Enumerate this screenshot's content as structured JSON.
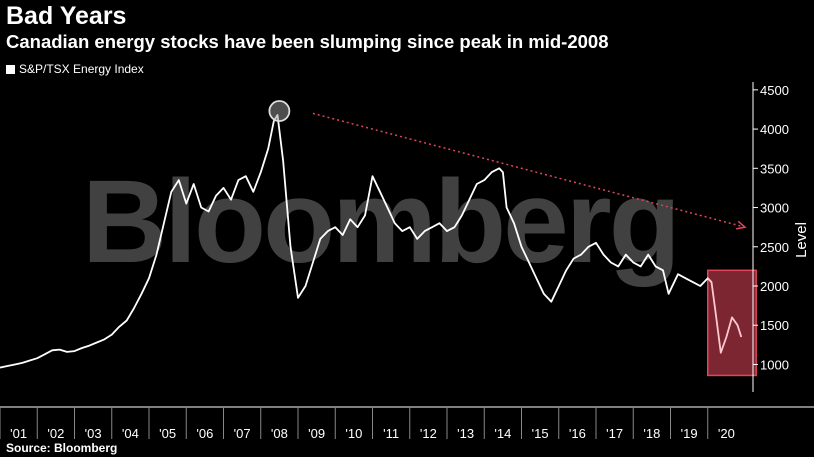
{
  "title": "Bad Years",
  "subtitle": "Canadian energy stocks have been slumping since peak in mid-2008",
  "source": "Source: Bloomberg",
  "watermark": "Bloomberg",
  "colors": {
    "background": "#000000",
    "line": "#ffffff",
    "highlight": "#e0455a",
    "trend_arrow": "#e0455a"
  },
  "chart_data": {
    "type": "line",
    "title": "Bad Years",
    "subtitle": "Canadian energy stocks have been slumping since peak in mid-2008",
    "ylabel": "Level",
    "ylim": [
      700,
      4600
    ],
    "xlim": [
      2001.0,
      2021.0
    ],
    "y_ticks": [
      1000,
      1500,
      2000,
      2500,
      3000,
      3500,
      4000,
      4500
    ],
    "y_tick_labels": [
      "1000",
      "1500",
      "2000",
      "2500",
      "3000",
      "3500",
      "4000",
      "4500"
    ],
    "x_tick_labels": [
      "'01",
      "'02",
      "'03",
      "'04",
      "'05",
      "'06",
      "'07",
      "'08",
      "'09",
      "'10",
      "'11",
      "'12",
      "'13",
      "'14",
      "'15",
      "'16",
      "'17",
      "'18",
      "'19",
      "'20"
    ],
    "legend": {
      "position": "top-left"
    },
    "grid": false,
    "series": [
      {
        "name": "S&P/TSX Energy Index",
        "x": [
          2001.0,
          2001.2,
          2001.4,
          2001.6,
          2001.8,
          2002.0,
          2002.2,
          2002.4,
          2002.6,
          2002.8,
          2003.0,
          2003.2,
          2003.4,
          2003.6,
          2003.8,
          2004.0,
          2004.2,
          2004.4,
          2004.6,
          2004.8,
          2005.0,
          2005.2,
          2005.4,
          2005.6,
          2005.8,
          2006.0,
          2006.2,
          2006.4,
          2006.6,
          2006.8,
          2007.0,
          2007.2,
          2007.4,
          2007.6,
          2007.8,
          2008.0,
          2008.2,
          2008.35,
          2008.45,
          2008.6,
          2008.8,
          2009.0,
          2009.2,
          2009.4,
          2009.6,
          2009.8,
          2010.0,
          2010.2,
          2010.4,
          2010.6,
          2010.8,
          2011.0,
          2011.2,
          2011.4,
          2011.6,
          2011.8,
          2012.0,
          2012.2,
          2012.4,
          2012.6,
          2012.8,
          2013.0,
          2013.2,
          2013.4,
          2013.6,
          2013.8,
          2014.0,
          2014.2,
          2014.4,
          2014.5,
          2014.6,
          2014.8,
          2015.0,
          2015.2,
          2015.4,
          2015.6,
          2015.8,
          2016.0,
          2016.2,
          2016.4,
          2016.6,
          2016.8,
          2017.0,
          2017.2,
          2017.4,
          2017.6,
          2017.8,
          2018.0,
          2018.2,
          2018.4,
          2018.6,
          2018.8,
          2018.95,
          2019.2,
          2019.4,
          2019.6,
          2019.8,
          2020.0,
          2020.1,
          2020.2,
          2020.35,
          2020.5,
          2020.65,
          2020.8,
          2020.9
        ],
        "values": [
          960,
          980,
          1000,
          1020,
          1050,
          1080,
          1130,
          1180,
          1190,
          1160,
          1170,
          1210,
          1240,
          1280,
          1320,
          1380,
          1480,
          1560,
          1720,
          1900,
          2100,
          2400,
          2800,
          3200,
          3350,
          3050,
          3300,
          3000,
          2950,
          3150,
          3250,
          3100,
          3350,
          3400,
          3200,
          3450,
          3750,
          4100,
          4180,
          3600,
          2500,
          1850,
          2000,
          2300,
          2600,
          2700,
          2750,
          2650,
          2850,
          2750,
          2900,
          3400,
          3200,
          3000,
          2800,
          2700,
          2750,
          2600,
          2700,
          2750,
          2800,
          2700,
          2750,
          2900,
          3100,
          3300,
          3350,
          3450,
          3500,
          3450,
          3000,
          2800,
          2500,
          2300,
          2100,
          1900,
          1800,
          2000,
          2200,
          2350,
          2400,
          2500,
          2550,
          2400,
          2300,
          2250,
          2400,
          2300,
          2250,
          2400,
          2250,
          2200,
          1900,
          2150,
          2100,
          2050,
          2000,
          2100,
          2050,
          1700,
          1150,
          1350,
          1600,
          1500,
          1350
        ]
      }
    ],
    "annotations": [
      {
        "type": "circle",
        "label": "peak in mid-2008",
        "x": 2008.5,
        "y": 4230
      },
      {
        "type": "arrow",
        "from": {
          "x": 2009.4,
          "y": 4200
        },
        "to": {
          "x": 2021.0,
          "y": 2750
        }
      },
      {
        "type": "box",
        "x0": 2020.0,
        "x1": 2021.3,
        "y0": 860,
        "y1": 2200
      }
    ]
  }
}
